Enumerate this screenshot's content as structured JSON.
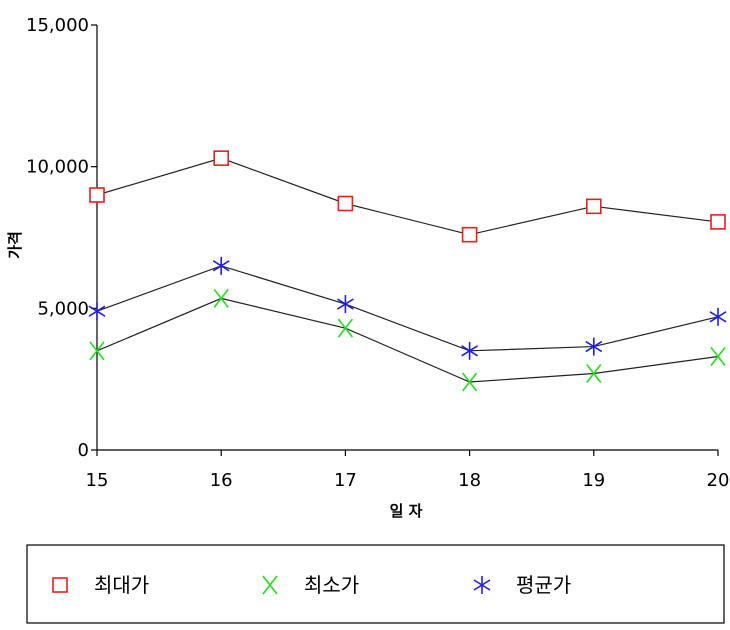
{
  "chart_data": {
    "type": "line",
    "title": "",
    "xlabel": "일 자",
    "ylabel": "가격",
    "x": [
      15,
      16,
      17,
      18,
      19,
      20
    ],
    "x_tick_labels": [
      "15",
      "16",
      "17",
      "18",
      "19",
      "20"
    ],
    "ylim": [
      0,
      15000
    ],
    "y_ticks": [
      0,
      5000,
      10000,
      15000
    ],
    "y_tick_labels": [
      "0",
      "5,000",
      "10,000",
      "15,000"
    ],
    "grid": false,
    "legend_position": "bottom",
    "series": [
      {
        "name": "최대가",
        "values": [
          9000,
          10300,
          8700,
          7600,
          8600,
          8050
        ],
        "marker": "square",
        "color": "#e8201c"
      },
      {
        "name": "최소가",
        "values": [
          3500,
          5350,
          4300,
          2400,
          2700,
          3300
        ],
        "marker": "x",
        "color": "#22e01e"
      },
      {
        "name": "평균가",
        "values": [
          4900,
          6500,
          5150,
          3500,
          3650,
          4700
        ],
        "marker": "star",
        "color": "#1f1fe0"
      }
    ]
  }
}
